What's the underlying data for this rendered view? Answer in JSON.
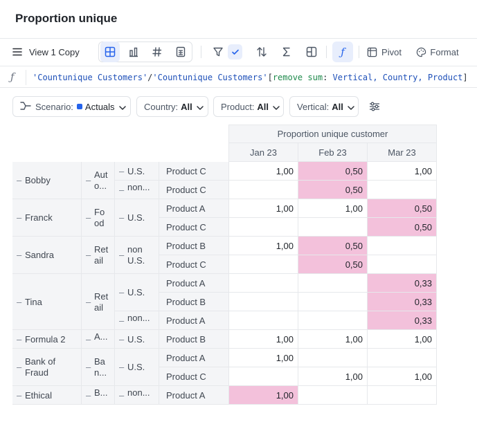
{
  "title": "Proportion unique",
  "toolbar": {
    "view_label": "View 1 Copy",
    "pivot_label": "Pivot",
    "format_label": "Format"
  },
  "formula": {
    "str1": "'Countunique Customers'",
    "op1": "/",
    "str2": "'Countunique Customers'",
    "open": "[",
    "kw_remove": "remove",
    "kw_sum": "sum",
    "colon": ":",
    "args": " Vertical, Country,  Product",
    "close": "]"
  },
  "filters": {
    "scenario_label": "Scenario:",
    "scenario_value": "Actuals",
    "country_label": "Country:",
    "country_value": "All",
    "product_label": "Product:",
    "product_value": "All",
    "vertical_label": "Vertical:",
    "vertical_value": "All"
  },
  "table": {
    "group_header": "Proportion unique customer",
    "columns": [
      "Jan 23",
      "Feb 23",
      "Mar 23"
    ],
    "highlight_color": "#f3c1db",
    "customers": [
      "Bobby",
      "Franck",
      "Sandra",
      "Tina",
      "Formula 2",
      "Bank of Fraud",
      "Ethical"
    ],
    "verticals": [
      "Aut o...",
      "Fo od",
      "Ret ail",
      "Ret ail",
      "A...",
      "Ba n...",
      "B..."
    ],
    "countries": [
      "U.S.",
      "non...",
      "U.S.",
      "non U.S.",
      "U.S.",
      "non...",
      "U.S.",
      "U.S.",
      "non..."
    ],
    "rows": [
      {
        "product": "Product C",
        "values": [
          "1,00",
          "0,50",
          "1,00"
        ],
        "highlight": [
          false,
          true,
          false
        ]
      },
      {
        "product": "Product C",
        "values": [
          "",
          "0,50",
          ""
        ],
        "highlight": [
          false,
          true,
          false
        ]
      },
      {
        "product": "Product A",
        "values": [
          "1,00",
          "1,00",
          "0,50"
        ],
        "highlight": [
          false,
          false,
          true
        ]
      },
      {
        "product": "Product C",
        "values": [
          "",
          "",
          "0,50"
        ],
        "highlight": [
          false,
          false,
          true
        ]
      },
      {
        "product": "Product B",
        "values": [
          "1,00",
          "0,50",
          ""
        ],
        "highlight": [
          false,
          true,
          false
        ]
      },
      {
        "product": "Product C",
        "values": [
          "",
          "0,50",
          ""
        ],
        "highlight": [
          false,
          true,
          false
        ]
      },
      {
        "product": "Product A",
        "values": [
          "",
          "",
          "0,33"
        ],
        "highlight": [
          false,
          false,
          true
        ]
      },
      {
        "product": "Product B",
        "values": [
          "",
          "",
          "0,33"
        ],
        "highlight": [
          false,
          false,
          true
        ]
      },
      {
        "product": "Product A",
        "values": [
          "",
          "",
          "0,33"
        ],
        "highlight": [
          false,
          false,
          true
        ]
      },
      {
        "product": "Product B",
        "values": [
          "1,00",
          "1,00",
          "1,00"
        ],
        "highlight": [
          false,
          false,
          false
        ]
      },
      {
        "product": "Product A",
        "values": [
          "1,00",
          "",
          ""
        ],
        "highlight": [
          false,
          false,
          false
        ]
      },
      {
        "product": "Product C",
        "values": [
          "",
          "1,00",
          "1,00"
        ],
        "highlight": [
          false,
          false,
          false
        ]
      },
      {
        "product": "Product A",
        "values": [
          "1,00",
          "",
          ""
        ],
        "highlight": [
          true,
          false,
          false
        ]
      }
    ]
  }
}
